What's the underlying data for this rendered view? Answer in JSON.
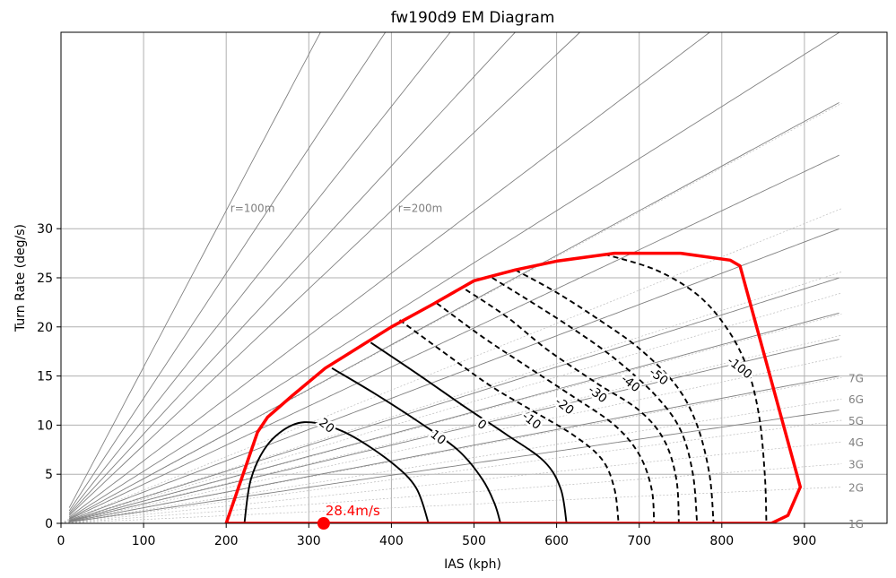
{
  "chart_data": {
    "type": "line",
    "title": "fw190d9 EM Diagram",
    "xlabel": "IAS (kph)",
    "ylabel": "Turn Rate (deg/s)",
    "xlim": [
      0,
      1000
    ],
    "ylim": [
      0,
      50
    ],
    "x_ticks": [
      0,
      100,
      200,
      300,
      400,
      500,
      600,
      700,
      800,
      900
    ],
    "y_ticks": [
      0,
      5,
      10,
      15,
      20,
      25,
      30
    ],
    "grid": true,
    "radius_lines": {
      "radii_m": [
        100,
        125,
        150,
        175,
        200,
        250,
        300,
        350,
        400,
        500,
        600,
        700,
        800,
        1000,
        1300
      ],
      "labels": [
        {
          "text": "r=100m",
          "x": 205,
          "y": 31.7
        },
        {
          "text": "r=200m",
          "x": 408,
          "y": 31.7
        }
      ]
    },
    "g_lines": [
      {
        "label": "1G",
        "g": 1
      },
      {
        "label": "2G",
        "g": 2
      },
      {
        "label": "3G",
        "g": 3
      },
      {
        "label": "4G",
        "g": 4
      },
      {
        "label": "5G",
        "g": 5
      },
      {
        "label": "6G",
        "g": 6
      },
      {
        "label": "7G",
        "g": 7
      },
      {
        "label": "",
        "g": 8
      },
      {
        "label": "",
        "g": 9
      },
      {
        "label": "",
        "g": 10
      },
      {
        "label": "",
        "g": 11
      },
      {
        "label": "",
        "g": 12
      },
      {
        "label": "",
        "g": 15
      },
      {
        "label": "",
        "g": 20
      }
    ],
    "envelope": {
      "color": "#ff0000",
      "points": [
        [
          200,
          0
        ],
        [
          238,
          9.3
        ],
        [
          250,
          10.8
        ],
        [
          280,
          13.0
        ],
        [
          320,
          15.8
        ],
        [
          400,
          20.0
        ],
        [
          450,
          22.3
        ],
        [
          500,
          24.7
        ],
        [
          550,
          25.8
        ],
        [
          600,
          26.7
        ],
        [
          670,
          27.5
        ],
        [
          750,
          27.5
        ],
        [
          810,
          26.8
        ],
        [
          822,
          26.2
        ],
        [
          895,
          3.7
        ],
        [
          880,
          0.8
        ],
        [
          860,
          0
        ],
        [
          200,
          0
        ]
      ]
    },
    "ps_contours": [
      {
        "label": "20",
        "style": "solid",
        "label_pos": [
          322,
          10.0
        ],
        "points": [
          [
            222,
            0
          ],
          [
            230,
            4.5
          ],
          [
            250,
            8.0
          ],
          [
            280,
            10.0
          ],
          [
            310,
            10.2
          ],
          [
            350,
            9.0
          ],
          [
            400,
            6.2
          ],
          [
            430,
            3.6
          ],
          [
            445,
            0
          ]
        ]
      },
      {
        "label": "10",
        "style": "solid",
        "label_pos": [
          457,
          8.8
        ],
        "points": [
          [
            328,
            15.8
          ],
          [
            380,
            13.2
          ],
          [
            430,
            10.5
          ],
          [
            480,
            7.5
          ],
          [
            510,
            4.5
          ],
          [
            525,
            2.0
          ],
          [
            532,
            0
          ]
        ]
      },
      {
        "label": "0",
        "style": "solid",
        "label_pos": [
          510,
          10.1
        ],
        "points": [
          [
            375,
            18.4
          ],
          [
            430,
            15.3
          ],
          [
            490,
            11.8
          ],
          [
            540,
            9.0
          ],
          [
            585,
            6.3
          ],
          [
            605,
            3.5
          ],
          [
            612,
            0
          ]
        ]
      },
      {
        "label": "-10",
        "style": "dashed",
        "label_pos": [
          570,
          10.5
        ],
        "points": [
          [
            410,
            20.7
          ],
          [
            470,
            17.0
          ],
          [
            520,
            14.0
          ],
          [
            570,
            11.5
          ],
          [
            620,
            9.0
          ],
          [
            655,
            6.5
          ],
          [
            670,
            3.5
          ],
          [
            675,
            0
          ]
        ]
      },
      {
        "label": "-20",
        "style": "dashed",
        "label_pos": [
          610,
          12.0
        ],
        "points": [
          [
            455,
            22.4
          ],
          [
            510,
            19.0
          ],
          [
            560,
            16.2
          ],
          [
            620,
            12.9
          ],
          [
            670,
            10.0
          ],
          [
            700,
            7.0
          ],
          [
            715,
            3.5
          ],
          [
            718,
            0
          ]
        ]
      },
      {
        "label": "-30",
        "style": "dashed",
        "label_pos": [
          650,
          13.2
        ],
        "points": [
          [
            490,
            23.8
          ],
          [
            540,
            21.0
          ],
          [
            590,
            17.6
          ],
          [
            650,
            14.2
          ],
          [
            700,
            11.5
          ],
          [
            730,
            8.5
          ],
          [
            745,
            4.5
          ],
          [
            748,
            0
          ]
        ]
      },
      {
        "label": "-40",
        "style": "dashed",
        "label_pos": [
          690,
          14.3
        ],
        "points": [
          [
            522,
            25.0
          ],
          [
            570,
            22.5
          ],
          [
            620,
            19.8
          ],
          [
            670,
            16.8
          ],
          [
            720,
            13.0
          ],
          [
            750,
            9.5
          ],
          [
            765,
            5.0
          ],
          [
            770,
            0
          ]
        ]
      },
      {
        "label": "-50",
        "style": "dashed",
        "label_pos": [
          724,
          15.0
        ],
        "points": [
          [
            550,
            25.8
          ],
          [
            600,
            23.5
          ],
          [
            650,
            20.8
          ],
          [
            700,
            17.8
          ],
          [
            745,
            14.0
          ],
          [
            770,
            10.0
          ],
          [
            785,
            5.0
          ],
          [
            790,
            0
          ]
        ]
      },
      {
        "label": "-100",
        "style": "dashed",
        "label_pos": [
          822,
          15.9
        ],
        "points": [
          [
            658,
            27.4
          ],
          [
            720,
            25.8
          ],
          [
            770,
            23.3
          ],
          [
            805,
            20.0
          ],
          [
            830,
            16.0
          ],
          [
            845,
            11.0
          ],
          [
            852,
            5.0
          ],
          [
            854,
            0
          ]
        ]
      }
    ],
    "marker": {
      "x": 318,
      "y": 0,
      "label": "28.4m/s",
      "color": "#ff0000"
    }
  }
}
